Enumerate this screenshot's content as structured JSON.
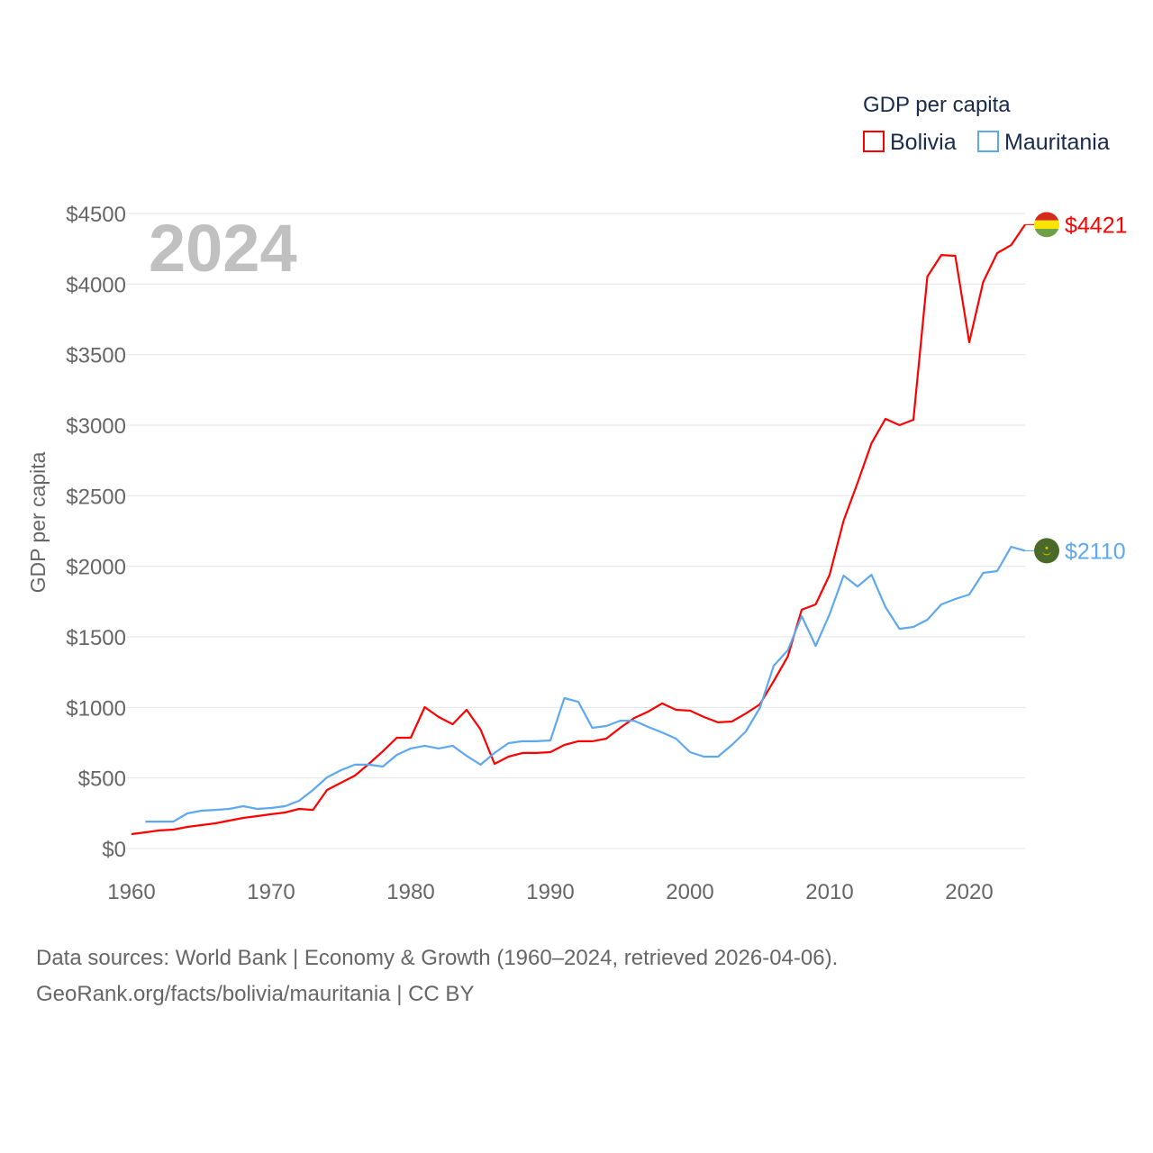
{
  "chart_data": {
    "type": "line",
    "title": "GDP per capita",
    "xlabel": "",
    "ylabel": "GDP per capita",
    "xlim": [
      1960,
      2024
    ],
    "ylim": [
      0,
      4500
    ],
    "year_label": "2024",
    "grid": true,
    "legend_placement": "top-right",
    "legend_title": "GDP per capita",
    "x_ticks": [
      "1960",
      "1970",
      "1980",
      "1990",
      "2000",
      "2010",
      "2020"
    ],
    "x_tick_values": [
      1960,
      1970,
      1980,
      1990,
      2000,
      2010,
      2020
    ],
    "y_ticks": [
      "$0",
      "$500",
      "$1000",
      "$1500",
      "$2000",
      "$2500",
      "$3000",
      "$3500",
      "$4000",
      "$4500"
    ],
    "y_tick_values": [
      0,
      500,
      1000,
      1500,
      2000,
      2500,
      3000,
      3500,
      4000,
      4500
    ],
    "series": [
      {
        "name": "Bolivia",
        "color": "#ff0000",
        "end_label": "$4421",
        "flag": "bolivia-flag",
        "start_year": 1960,
        "values": [
          102,
          115,
          128,
          134,
          153,
          166,
          179,
          198,
          217,
          230,
          243,
          255,
          281,
          274,
          415,
          466,
          517,
          600,
          689,
          785,
          785,
          1002,
          932,
          881,
          983,
          843,
          600,
          651,
          677,
          677,
          683,
          734,
          760,
          760,
          779,
          855,
          925,
          970,
          1028,
          983,
          977,
          932,
          894,
          900,
          957,
          1021,
          1187,
          1360,
          1692,
          1730,
          1940,
          2323,
          2591,
          2872,
          3045,
          3000,
          3038,
          4053,
          4206,
          4200,
          3587,
          4015,
          4219,
          4276,
          4421
        ]
      },
      {
        "name": "Mauritania",
        "color": "#5ea8f0",
        "end_label": "$2110",
        "flag": "mauritania-flag",
        "start_year": 1961,
        "values": [
          191,
          191,
          191,
          249,
          268,
          274,
          281,
          300,
          281,
          287,
          300,
          338,
          415,
          504,
          555,
          594,
          594,
          581,
          664,
          709,
          728,
          709,
          728,
          657,
          594,
          677,
          747,
          760,
          760,
          766,
          1066,
          1040,
          855,
          868,
          906,
          906,
          862,
          823,
          779,
          683,
          651,
          651,
          734,
          830,
          996,
          1296,
          1404,
          1647,
          1436,
          1660,
          1934,
          1857,
          1940,
          1711,
          1557,
          1570,
          1621,
          1730,
          1768,
          1800,
          1953,
          1966,
          2138,
          2110
        ]
      }
    ]
  },
  "footer": {
    "line1": "Data sources: World Bank | Economy & Growth (1960–2024, retrieved 2026-04-06).",
    "line2": "GeoRank.org/facts/bolivia/mauritania | CC BY"
  }
}
